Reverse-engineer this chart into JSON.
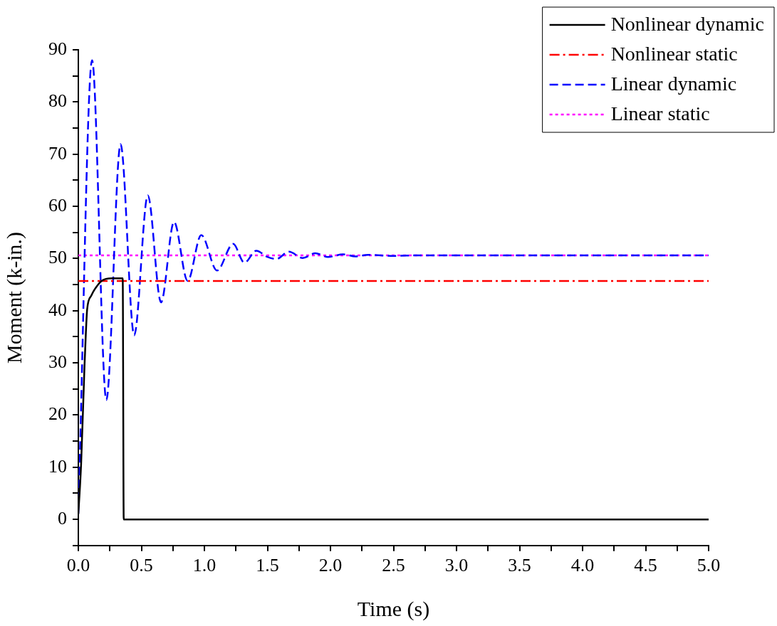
{
  "chart_data": {
    "type": "line",
    "xlabel": "Time (s)",
    "ylabel": "Moment (k-in.)",
    "xlim": [
      0,
      5
    ],
    "ylim": [
      -5,
      90
    ],
    "xticks": [
      {
        "value": 0,
        "label": "0.0"
      },
      {
        "value": 0.25,
        "label": null
      },
      {
        "value": 0.5,
        "label": "0.5"
      },
      {
        "value": 0.75,
        "label": null
      },
      {
        "value": 1,
        "label": "1.0"
      },
      {
        "value": 1.25,
        "label": null
      },
      {
        "value": 1.5,
        "label": "1.5"
      },
      {
        "value": 1.75,
        "label": null
      },
      {
        "value": 2,
        "label": "2.0"
      },
      {
        "value": 2.25,
        "label": null
      },
      {
        "value": 2.5,
        "label": "2.5"
      },
      {
        "value": 2.75,
        "label": null
      },
      {
        "value": 3,
        "label": "3.0"
      },
      {
        "value": 3.25,
        "label": null
      },
      {
        "value": 3.5,
        "label": "3.5"
      },
      {
        "value": 3.75,
        "label": null
      },
      {
        "value": 4,
        "label": "4.0"
      },
      {
        "value": 4.25,
        "label": null
      },
      {
        "value": 4.5,
        "label": "4.5"
      },
      {
        "value": 4.75,
        "label": null
      },
      {
        "value": 5,
        "label": "5.0"
      }
    ],
    "yticks": [
      {
        "value": -5,
        "label": null
      },
      0,
      {
        "value": 5,
        "label": null
      },
      10,
      {
        "value": 15,
        "label": null
      },
      20,
      {
        "value": 25,
        "label": null
      },
      30,
      {
        "value": 35,
        "label": null
      },
      40,
      {
        "value": 45,
        "label": null
      },
      50,
      {
        "value": 55,
        "label": null
      },
      60,
      {
        "value": 65,
        "label": null
      },
      70,
      {
        "value": 75,
        "label": null
      },
      80,
      {
        "value": 85,
        "label": null
      },
      90
    ],
    "grid": false,
    "legend": "top right",
    "marker": "none",
    "series": [
      {
        "name": "Nonlinear dynamic",
        "color": "#000000",
        "line_style": "solid",
        "x": [
          0,
          0.022,
          0.049,
          0.06,
          0.07,
          0.103,
          0.13,
          0.184,
          0.264,
          0.352,
          0.36,
          5
        ],
        "values": [
          1,
          10.6,
          29.5,
          35.9,
          40.3,
          42.9,
          44.1,
          45.7,
          46.2,
          46.2,
          0,
          0
        ]
      },
      {
        "name": "Nonlinear static",
        "color": "#ff0000",
        "line_style": "dashdot",
        "x": [
          0,
          5
        ],
        "values": [
          45.7,
          45.7
        ]
      },
      {
        "name": "Linear dynamic",
        "color": "#0000ff",
        "line_style": "dashed",
        "x": [
          0,
          0.109,
          0.222,
          0.335,
          0.443,
          0.551,
          0.656,
          0.759,
          0.867,
          0.975,
          1.1,
          1.228,
          1.317,
          1.412,
          1.5,
          1.57,
          1.67,
          1.78,
          1.88,
          1.98,
          2.1,
          2.2,
          2.3,
          2.5,
          2.7,
          5
        ],
        "values": [
          1.1,
          88,
          22.9,
          71.9,
          35.3,
          62.1,
          41.6,
          57,
          45.7,
          54.5,
          47.7,
          52.8,
          49.2,
          51.5,
          50.3,
          49.9,
          51.3,
          50.1,
          51,
          50.3,
          50.8,
          50.4,
          50.7,
          50.5,
          50.6,
          50.6
        ]
      },
      {
        "name": "Linear static",
        "color": "#ff00ff",
        "line_style": "dotted",
        "x": [
          0,
          5
        ],
        "values": [
          50.6,
          50.6
        ]
      }
    ]
  }
}
